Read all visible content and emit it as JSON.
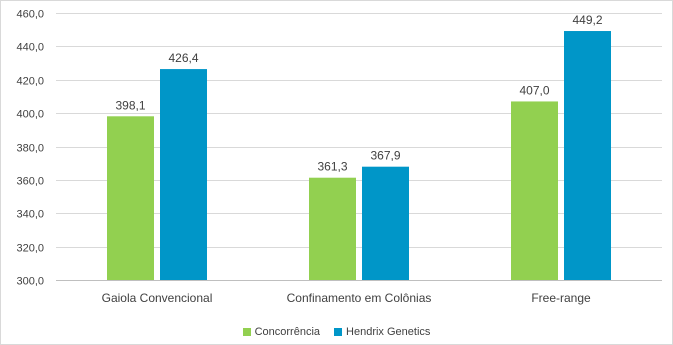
{
  "chart_data": {
    "type": "bar",
    "title": "",
    "xlabel": "",
    "ylabel": "",
    "categories": [
      "Gaiola Convencional",
      "Confinamento em Colônias",
      "Free-range"
    ],
    "series": [
      {
        "name": "Concorrência",
        "values": [
          398.1,
          361.3,
          407.0
        ],
        "labels": [
          "398,1",
          "361,3",
          "407,0"
        ],
        "color": "#92D050"
      },
      {
        "name": "Hendrix Genetics",
        "values": [
          426.4,
          367.9,
          449.2
        ],
        "labels": [
          "426,4",
          "367,9",
          "449,2"
        ],
        "color": "#0096C8"
      }
    ],
    "ylim": [
      300,
      460
    ],
    "yticks": [
      300,
      320,
      340,
      360,
      380,
      400,
      420,
      440,
      460
    ],
    "ytick_labels": [
      "300,0",
      "320,0",
      "340,0",
      "360,0",
      "380,0",
      "400,0",
      "420,0",
      "440,0",
      "460,0"
    ],
    "grid": true,
    "legend_position": "bottom"
  }
}
